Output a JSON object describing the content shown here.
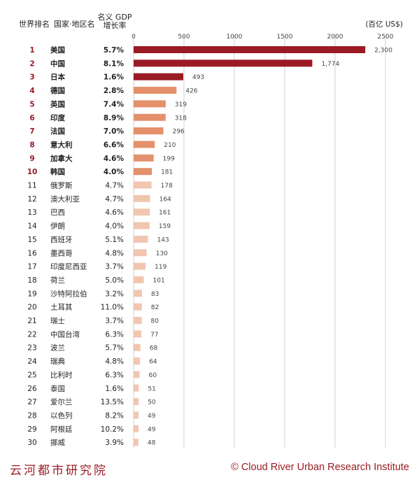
{
  "header": {
    "rank": "世界排名",
    "country": "国家·地区名",
    "growth_line1": "名义 GDP",
    "growth_line2": "增长率",
    "unit": "(百亿 US$)"
  },
  "footer": {
    "left": "云河都市研究院",
    "right": "© Cloud River Urban Research Institute"
  },
  "colors": {
    "top3": "#9b1b24",
    "rank4to10": "#e3906b",
    "rank11plus": "#f1c6b1",
    "rank_highlight": "#9b1b24",
    "grid": "#d0d0d0"
  },
  "chart_data": {
    "type": "bar",
    "orientation": "horizontal",
    "xlim": [
      0,
      2500
    ],
    "xticks": [
      "0",
      "500",
      "1000",
      "1500",
      "2000",
      "2500"
    ],
    "grid": true,
    "categories": [
      "美国",
      "中国",
      "日本",
      "德国",
      "英国",
      "印度",
      "法国",
      "意大利",
      "加拿大",
      "韩国",
      "俄罗斯",
      "澳大利亚",
      "巴西",
      "伊朗",
      "西班牙",
      "墨西哥",
      "印度尼西亚",
      "荷兰",
      "沙特阿拉伯",
      "土耳其",
      "瑞士",
      "中国台湾",
      "波兰",
      "瑞典",
      "比利时",
      "泰国",
      "爱尔兰",
      "以色列",
      "阿根廷",
      "挪威"
    ],
    "ranks": [
      "1",
      "2",
      "3",
      "4",
      "5",
      "6",
      "7",
      "8",
      "9",
      "10",
      "11",
      "12",
      "13",
      "14",
      "15",
      "16",
      "17",
      "18",
      "19",
      "20",
      "21",
      "22",
      "23",
      "24",
      "25",
      "26",
      "27",
      "28",
      "29",
      "30"
    ],
    "growth": [
      "5.7%",
      "8.1%",
      "1.6%",
      "2.8%",
      "7.4%",
      "8.9%",
      "7.0%",
      "6.6%",
      "4.6%",
      "4.0%",
      "4.7%",
      "4.7%",
      "4.6%",
      "4.0%",
      "5.1%",
      "4.8%",
      "3.7%",
      "5.0%",
      "3.2%",
      "11.0%",
      "3.7%",
      "6.3%",
      "5.7%",
      "4.8%",
      "6.3%",
      "1.6%",
      "13.5%",
      "8.2%",
      "10.2%",
      "3.9%"
    ],
    "values": [
      2300,
      1774,
      493,
      426,
      319,
      318,
      296,
      210,
      199,
      181,
      178,
      164,
      161,
      159,
      143,
      130,
      119,
      101,
      83,
      82,
      80,
      77,
      68,
      64,
      60,
      51,
      50,
      49,
      49,
      48
    ],
    "value_labels": [
      "2,300",
      "1,774",
      "493",
      "426",
      "319",
      "318",
      "296",
      "210",
      "199",
      "181",
      "178",
      "164",
      "161",
      "159",
      "143",
      "130",
      "119",
      "101",
      "83",
      "82",
      "80",
      "77",
      "68",
      "64",
      "60",
      "51",
      "50",
      "49",
      "49",
      "48"
    ]
  }
}
